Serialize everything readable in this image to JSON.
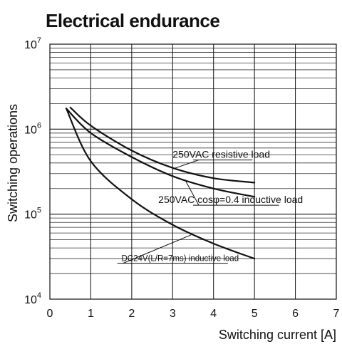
{
  "chart_data": {
    "type": "line",
    "title": "Electrical endurance",
    "xlabel": "Switching current [A]",
    "ylabel": "Switching operations",
    "xlim": [
      0,
      7
    ],
    "ylim": [
      10000,
      10000000
    ],
    "y_scale": "log",
    "grid": true,
    "x_ticks": [
      "0",
      "1",
      "2",
      "3",
      "4",
      "5",
      "6",
      "7"
    ],
    "y_ticks": [
      {
        "value": 10000,
        "base": "10",
        "exp": "4"
      },
      {
        "value": 100000,
        "base": "10",
        "exp": "5"
      },
      {
        "value": 1000000,
        "base": "10",
        "exp": "6"
      },
      {
        "value": 10000000,
        "base": "10",
        "exp": "7"
      }
    ],
    "series": [
      {
        "name": "250VAC resistive load",
        "x": [
          0.5,
          1,
          2,
          3,
          4,
          5
        ],
        "y": [
          1800000,
          1100000,
          560000,
          350000,
          265000,
          235000
        ]
      },
      {
        "name": "250VAC cosφ=0.4 inductive load",
        "x": [
          0.4,
          1,
          2,
          3,
          4,
          5
        ],
        "y": [
          1750000,
          900000,
          470000,
          280000,
          200000,
          160000
        ]
      },
      {
        "name": "DC24V(L/R=7ms) inductive load",
        "x": [
          0.4,
          1,
          2,
          3,
          4,
          5
        ],
        "y": [
          1750000,
          420000,
          150000,
          75000,
          45000,
          30000
        ]
      }
    ]
  }
}
